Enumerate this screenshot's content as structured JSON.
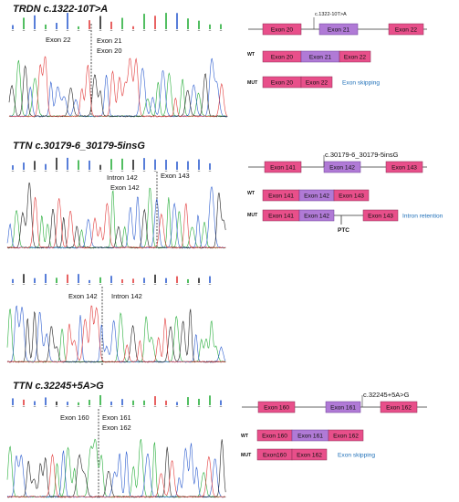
{
  "colors": {
    "exon_pink": "#e84f8a",
    "exon_purple": "#b07ad6",
    "note_blue": "#1e6fb8",
    "trace_A": "#27ae3a",
    "trace_C": "#2f5fd0",
    "trace_G": "#222222",
    "trace_T": "#e23b3b"
  },
  "panels": [
    {
      "title": "TRDN c.1322-10T>A",
      "chrom_labels": [
        {
          "text": "Exon 22"
        },
        {
          "text": "Exon 21"
        },
        {
          "text": "Exon 20"
        }
      ],
      "diagram": {
        "variant_label": "c.1322-10T>A",
        "top_exons": [
          "Exon 20",
          "Exon 21",
          "Exon 22"
        ],
        "wt": {
          "tag": "WT",
          "exons": [
            "Exon 20",
            "Exon 21",
            "Exon 22"
          ]
        },
        "mut": {
          "tag": "MUT",
          "exons": [
            "Exon 20",
            "Exon 22"
          ],
          "note": "Exon skipping"
        }
      }
    },
    {
      "title": "TTN c.30179-6_30179-5insG",
      "chrom_labels": [
        {
          "text": "Intron 142"
        },
        {
          "text": "Exon 142"
        },
        {
          "text": "Exon 143"
        }
      ],
      "chrom2_labels": [
        {
          "text": "Exon 142"
        },
        {
          "text": "Intron 142"
        }
      ],
      "diagram": {
        "variant_label": "c.30179-6_30179-5insG",
        "top_exons": [
          "Exon 141",
          "Exon 142",
          "Exon 143"
        ],
        "wt": {
          "tag": "WT",
          "exons": [
            "Exon 141",
            "Exon 142",
            "Exon 143"
          ]
        },
        "mut": {
          "tag": "MUT",
          "exons": [
            "Exon 141",
            "Exon 142",
            "Exon 143"
          ],
          "note": "Intron retention",
          "ptc": "PTC"
        }
      }
    },
    {
      "title": "TTN c.32245+5A>G",
      "chrom_labels": [
        {
          "text": "Exon 160"
        },
        {
          "text": "Exon 161"
        },
        {
          "text": "Exon 162"
        }
      ],
      "diagram": {
        "variant_label": "c.32245+5A>G",
        "top_exons": [
          "Exon 160",
          "Exon 161",
          "Exon 162"
        ],
        "wt": {
          "tag": "WT",
          "exons": [
            "Exon 160",
            "Exon 161",
            "Exon 162"
          ]
        },
        "mut": {
          "tag": "MUT",
          "exons": [
            "Exon160",
            "Exon 162"
          ],
          "note": "Exon skipping"
        }
      }
    }
  ]
}
